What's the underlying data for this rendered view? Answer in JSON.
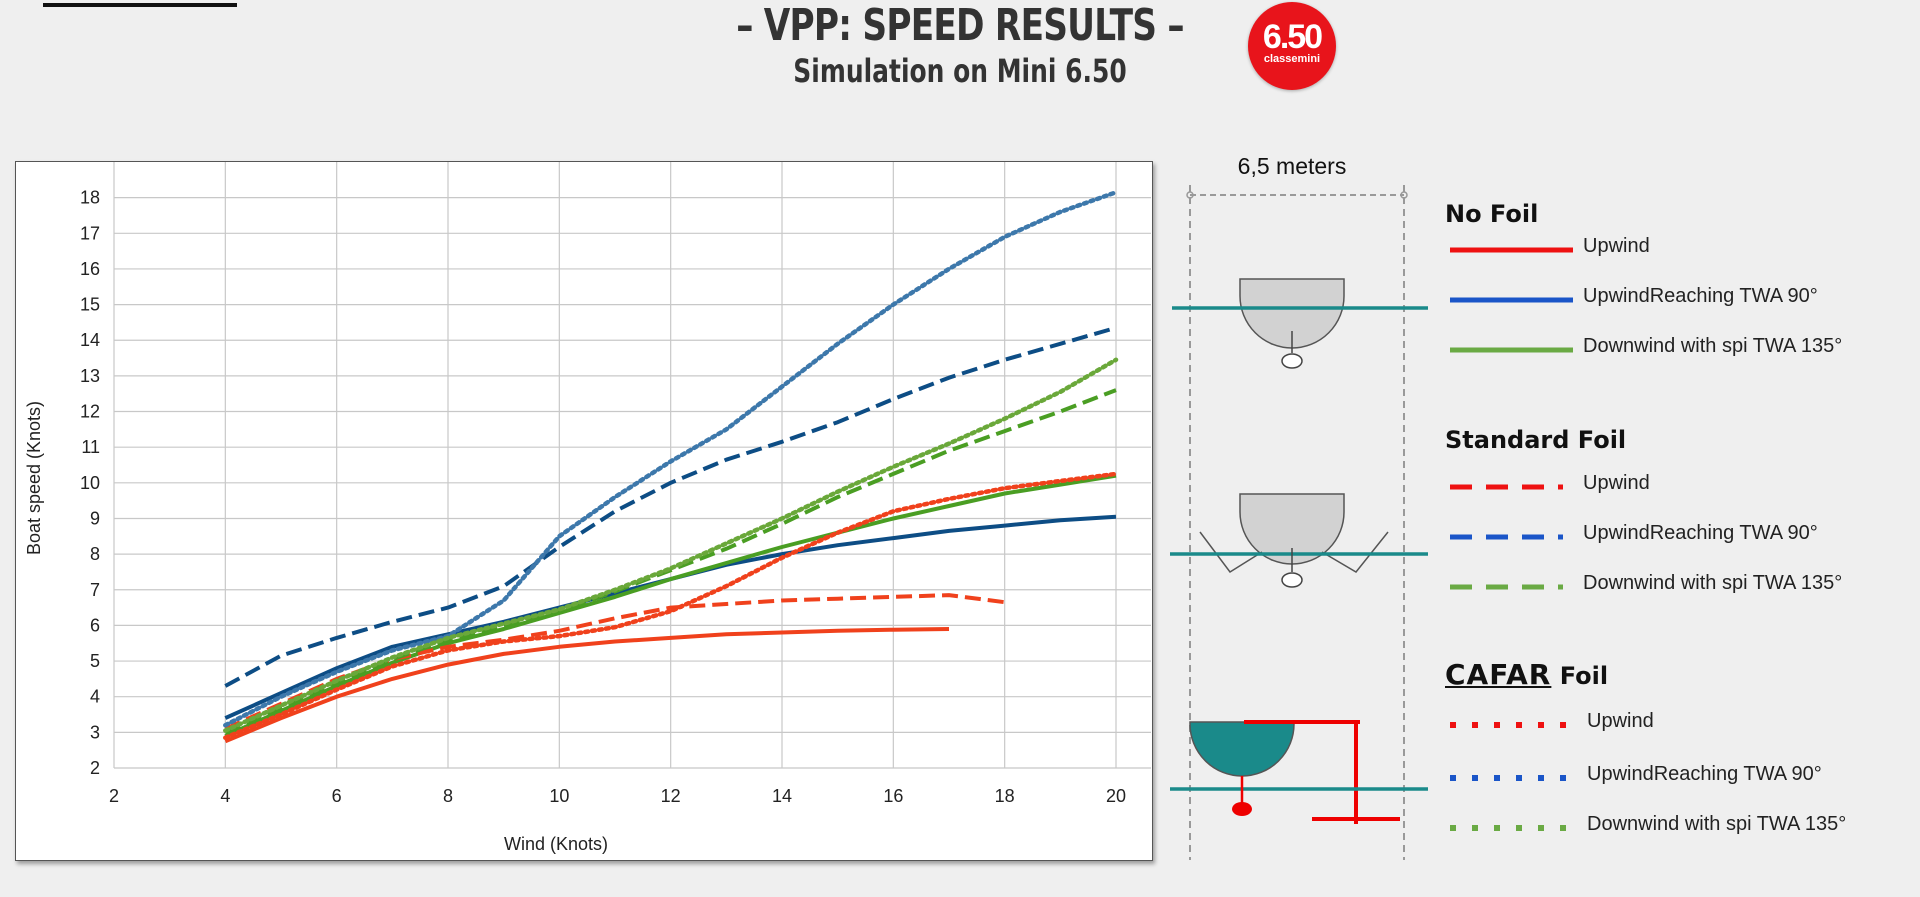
{
  "header": {
    "title": "– VPP: SPEED RESULTS –",
    "subtitle": "Simulation on Mini 6.50",
    "logo_main": "6.50",
    "logo_sub": "classemini"
  },
  "colors": {
    "red": "#f0411c",
    "blue": "#0d4d85",
    "blue_light": "#3d78ab",
    "green": "#4a9e23",
    "green_light": "#6aa83a",
    "teal": "#1a8a8a",
    "legend_red": "#ee1111",
    "legend_blue": "#1a55c8",
    "legend_green": "#6aaa44"
  },
  "chart_data": {
    "type": "line",
    "xlabel": "Wind (Knots)",
    "ylabel": "Boat speed (Knots)",
    "xlim": [
      2,
      20
    ],
    "ylim": [
      2,
      19
    ],
    "xticks": [
      "2",
      "4",
      "6",
      "8",
      "10",
      "12",
      "14",
      "16",
      "18",
      "20"
    ],
    "yticks": [
      "2",
      "3",
      "4",
      "5",
      "6",
      "7",
      "8",
      "9",
      "10",
      "11",
      "12",
      "13",
      "14",
      "15",
      "16",
      "17",
      "18"
    ],
    "grid": true,
    "series": [
      {
        "id": "nofoil_upwind",
        "color": "red",
        "style": "solid",
        "points": [
          [
            4,
            2.75
          ],
          [
            5,
            3.4
          ],
          [
            6,
            4
          ],
          [
            7,
            4.5
          ],
          [
            8,
            4.9
          ],
          [
            9,
            5.2
          ],
          [
            10,
            5.4
          ],
          [
            11,
            5.55
          ],
          [
            12,
            5.65
          ],
          [
            13,
            5.75
          ],
          [
            14,
            5.8
          ],
          [
            15,
            5.85
          ],
          [
            16,
            5.88
          ],
          [
            17,
            5.9
          ]
        ]
      },
      {
        "id": "nofoil_reaching",
        "color": "blue",
        "style": "solid",
        "points": [
          [
            4,
            3.4
          ],
          [
            5,
            4.1
          ],
          [
            6,
            4.8
          ],
          [
            7,
            5.4
          ],
          [
            8,
            5.75
          ],
          [
            9,
            6.1
          ],
          [
            10,
            6.5
          ],
          [
            11,
            6.9
          ],
          [
            12,
            7.3
          ],
          [
            13,
            7.7
          ],
          [
            14,
            8
          ],
          [
            15,
            8.25
          ],
          [
            16,
            8.45
          ],
          [
            17,
            8.65
          ],
          [
            18,
            8.8
          ],
          [
            19,
            8.95
          ],
          [
            20,
            9.05
          ]
        ]
      },
      {
        "id": "nofoil_downwind",
        "color": "green",
        "style": "solid",
        "points": [
          [
            4,
            2.9
          ],
          [
            5,
            3.6
          ],
          [
            6,
            4.3
          ],
          [
            7,
            4.95
          ],
          [
            8,
            5.5
          ],
          [
            9,
            5.9
          ],
          [
            10,
            6.35
          ],
          [
            11,
            6.8
          ],
          [
            12,
            7.3
          ],
          [
            13,
            7.75
          ],
          [
            14,
            8.2
          ],
          [
            15,
            8.6
          ],
          [
            16,
            9
          ],
          [
            17,
            9.35
          ],
          [
            18,
            9.7
          ],
          [
            19,
            9.95
          ],
          [
            20,
            10.2
          ]
        ]
      },
      {
        "id": "std_upwind",
        "color": "red",
        "style": "dashed",
        "points": [
          [
            4,
            3.1
          ],
          [
            5,
            3.8
          ],
          [
            6,
            4.5
          ],
          [
            7,
            5.05
          ],
          [
            8,
            5.4
          ],
          [
            9,
            5.6
          ],
          [
            10,
            5.85
          ],
          [
            11,
            6.2
          ],
          [
            12,
            6.5
          ],
          [
            13,
            6.6
          ],
          [
            14,
            6.7
          ],
          [
            15,
            6.75
          ],
          [
            16,
            6.8
          ],
          [
            17,
            6.85
          ],
          [
            18,
            6.65
          ]
        ]
      },
      {
        "id": "std_reaching",
        "color": "blue",
        "style": "dashed",
        "points": [
          [
            4,
            4.3
          ],
          [
            5,
            5.15
          ],
          [
            6,
            5.65
          ],
          [
            7,
            6.1
          ],
          [
            8,
            6.5
          ],
          [
            9,
            7.1
          ],
          [
            10,
            8.2
          ],
          [
            11,
            9.2
          ],
          [
            12,
            10
          ],
          [
            13,
            10.65
          ],
          [
            14,
            11.15
          ],
          [
            15,
            11.7
          ],
          [
            16,
            12.35
          ],
          [
            17,
            12.95
          ],
          [
            18,
            13.45
          ],
          [
            19,
            13.9
          ],
          [
            20,
            14.35
          ]
        ]
      },
      {
        "id": "std_downwind",
        "color": "green",
        "style": "dashed",
        "points": [
          [
            4,
            3
          ],
          [
            5,
            3.7
          ],
          [
            6,
            4.4
          ],
          [
            7,
            5.05
          ],
          [
            8,
            5.6
          ],
          [
            9,
            6
          ],
          [
            10,
            6.4
          ],
          [
            11,
            6.95
          ],
          [
            12,
            7.55
          ],
          [
            13,
            8.15
          ],
          [
            14,
            8.85
          ],
          [
            15,
            9.6
          ],
          [
            16,
            10.25
          ],
          [
            17,
            10.9
          ],
          [
            18,
            11.45
          ],
          [
            19,
            12
          ],
          [
            20,
            12.6
          ]
        ]
      },
      {
        "id": "cafar_upwind",
        "color": "red",
        "style": "dotted",
        "points": [
          [
            4,
            2.85
          ],
          [
            5,
            3.5
          ],
          [
            6,
            4.2
          ],
          [
            7,
            4.85
          ],
          [
            8,
            5.3
          ],
          [
            9,
            5.55
          ],
          [
            10,
            5.7
          ],
          [
            11,
            5.95
          ],
          [
            12,
            6.4
          ],
          [
            13,
            7.1
          ],
          [
            14,
            7.9
          ],
          [
            15,
            8.6
          ],
          [
            16,
            9.2
          ],
          [
            17,
            9.55
          ],
          [
            18,
            9.85
          ],
          [
            19,
            10.05
          ],
          [
            20,
            10.25
          ]
        ]
      },
      {
        "id": "cafar_reaching",
        "color": "blue_light",
        "style": "dotted",
        "points": [
          [
            4,
            3.2
          ],
          [
            5,
            4
          ],
          [
            6,
            4.7
          ],
          [
            7,
            5.3
          ],
          [
            8,
            5.7
          ],
          [
            9,
            6.7
          ],
          [
            10,
            8.5
          ],
          [
            11,
            9.6
          ],
          [
            12,
            10.6
          ],
          [
            13,
            11.5
          ],
          [
            14,
            12.7
          ],
          [
            15,
            13.9
          ],
          [
            16,
            15
          ],
          [
            17,
            16
          ],
          [
            18,
            16.9
          ],
          [
            19,
            17.6
          ],
          [
            20,
            18.15
          ]
        ]
      },
      {
        "id": "cafar_downwind",
        "color": "green_light",
        "style": "dotted",
        "points": [
          [
            4,
            3.05
          ],
          [
            5,
            3.75
          ],
          [
            6,
            4.45
          ],
          [
            7,
            5.1
          ],
          [
            8,
            5.65
          ],
          [
            9,
            6.05
          ],
          [
            10,
            6.45
          ],
          [
            11,
            7
          ],
          [
            12,
            7.6
          ],
          [
            13,
            8.3
          ],
          [
            14,
            9
          ],
          [
            15,
            9.75
          ],
          [
            16,
            10.45
          ],
          [
            17,
            11.1
          ],
          [
            18,
            11.8
          ],
          [
            19,
            12.55
          ],
          [
            20,
            13.45
          ]
        ]
      }
    ]
  },
  "diagram": {
    "width_label": "6,5 meters"
  },
  "legend": {
    "groups": [
      {
        "title": "No Foil",
        "style": "solid",
        "items": [
          "Upwind",
          "UpwindReaching TWA 90°",
          "Downwind with spi TWA 135°"
        ]
      },
      {
        "title": "Standard Foil",
        "style": "dashed",
        "items": [
          "Upwind",
          "UpwindReaching TWA 90°",
          "Downwind with spi TWA 135°"
        ]
      },
      {
        "brand": "CAFAR",
        "title": "Foil",
        "style": "dotted",
        "items": [
          "Upwind",
          "UpwindReaching TWA 90°",
          "Downwind with spi TWA 135°"
        ]
      }
    ]
  }
}
